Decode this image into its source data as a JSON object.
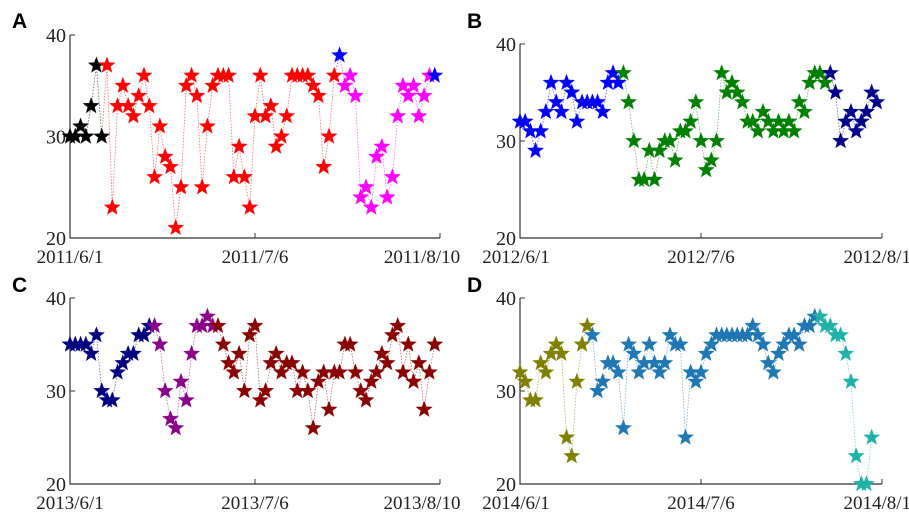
{
  "chart_data": [
    {
      "panel": "A",
      "type": "scatter",
      "xlabel": "",
      "ylabel": "",
      "ylim": [
        20,
        40
      ],
      "yticks": [
        "20",
        "30",
        "40"
      ],
      "x_tick_labels": [
        "2011/6/1",
        "2011/7/6",
        "2011/8/10"
      ],
      "x_domain": [
        0,
        70
      ],
      "grid": false,
      "series": [
        {
          "color": "#000000",
          "x": [
            0,
            1,
            2,
            3,
            4,
            5,
            6
          ],
          "y": [
            30,
            30,
            31,
            30,
            33,
            37,
            30
          ]
        },
        {
          "color": "#ff0000",
          "x": [
            7,
            8,
            9,
            10,
            11,
            12,
            13,
            14,
            15,
            16,
            17,
            18,
            19,
            20,
            21,
            22,
            23,
            24,
            25,
            26,
            27,
            28,
            29,
            30,
            31,
            32,
            33,
            34,
            35,
            36,
            37,
            38,
            39,
            40,
            41,
            42,
            43,
            44,
            45,
            46,
            47,
            48,
            49,
            50
          ],
          "y": [
            37,
            23,
            33,
            35,
            33,
            32,
            34,
            36,
            33,
            26,
            31,
            28,
            27,
            21,
            25,
            35,
            36,
            34,
            25,
            31,
            35,
            36,
            36,
            36,
            26,
            29,
            26,
            23,
            32,
            36,
            32,
            33,
            29,
            30,
            32,
            36,
            36,
            36,
            36,
            35,
            34,
            27,
            30,
            36
          ]
        },
        {
          "color": "#0000ff",
          "x": [
            51
          ],
          "y": [
            38
          ]
        },
        {
          "color": "#ff00ff",
          "x": [
            52,
            53,
            54,
            55,
            56,
            57,
            58,
            59,
            60,
            61,
            62,
            63,
            64,
            65,
            66,
            67,
            68
          ],
          "y": [
            35,
            36,
            34,
            24,
            25,
            23,
            28,
            29,
            24,
            26,
            32,
            35,
            34,
            35,
            32,
            34,
            36
          ]
        },
        {
          "color": "#0000ff",
          "x": [
            69
          ],
          "y": [
            36
          ]
        }
      ]
    },
    {
      "panel": "B",
      "type": "scatter",
      "xlabel": "",
      "ylabel": "",
      "ylim": [
        20,
        40
      ],
      "yticks": [
        "20",
        "30",
        "40"
      ],
      "x_tick_labels": [
        "2012/6/1",
        "2012/7/6",
        "2012/8/10"
      ],
      "x_domain": [
        0,
        70
      ],
      "grid": false,
      "series": [
        {
          "color": "#0000ff",
          "x": [
            0,
            1,
            2,
            3,
            4,
            5,
            6,
            7,
            8,
            9,
            10,
            11,
            12,
            13,
            14,
            15,
            16,
            17,
            18,
            19
          ],
          "y": [
            32,
            32,
            31,
            29,
            31,
            33,
            36,
            34,
            33,
            36,
            35,
            32,
            34,
            34,
            34,
            34,
            33,
            36,
            37,
            36
          ]
        },
        {
          "color": "#008000",
          "x": [
            20,
            21,
            22,
            23,
            24,
            25,
            26,
            27,
            28,
            29,
            30,
            31,
            32,
            33,
            34,
            35,
            36,
            37,
            38,
            39,
            40,
            41,
            42,
            43,
            44,
            45,
            46,
            47,
            48,
            49,
            50,
            51,
            52,
            53,
            54,
            55,
            56,
            57,
            58,
            59
          ],
          "y": [
            37,
            34,
            30,
            26,
            26,
            29,
            26,
            29,
            30,
            30,
            28,
            31,
            31,
            32,
            34,
            30,
            27,
            28,
            30,
            37,
            35,
            36,
            35,
            34,
            32,
            32,
            31,
            33,
            32,
            31,
            32,
            31,
            32,
            31,
            34,
            33,
            36,
            37,
            37,
            36
          ]
        },
        {
          "color": "#00008b",
          "x": [
            60,
            61,
            62,
            63,
            64,
            65,
            66,
            67,
            68,
            69
          ],
          "y": [
            37,
            35,
            30,
            32,
            33,
            31,
            32,
            33,
            35,
            34
          ]
        }
      ]
    },
    {
      "panel": "C",
      "type": "scatter",
      "xlabel": "",
      "ylabel": "",
      "ylim": [
        20,
        40
      ],
      "yticks": [
        "20",
        "30",
        "40"
      ],
      "x_tick_labels": [
        "2013/6/1",
        "2013/7/6",
        "2013/8/10"
      ],
      "x_domain": [
        0,
        70
      ],
      "grid": false,
      "series": [
        {
          "color": "#000080",
          "x": [
            0,
            1,
            2,
            3,
            4,
            5,
            6,
            7,
            8,
            9,
            10,
            11,
            12,
            13,
            14,
            15
          ],
          "y": [
            35,
            35,
            35,
            35,
            34,
            36,
            30,
            29,
            29,
            32,
            33,
            34,
            34,
            36,
            36,
            37
          ]
        },
        {
          "color": "#8b008b",
          "x": [
            16,
            17,
            18,
            19,
            20,
            21,
            22,
            23,
            24,
            25,
            26,
            27
          ],
          "y": [
            37,
            35,
            30,
            27,
            26,
            31,
            29,
            34,
            37,
            37,
            38,
            37
          ]
        },
        {
          "color": "#8b0000",
          "x": [
            28,
            29,
            30,
            31,
            32,
            33,
            34,
            35,
            36,
            37,
            38,
            39,
            40,
            41,
            42,
            43,
            44,
            45,
            46,
            47,
            48,
            49,
            50,
            51,
            52,
            53,
            54,
            55,
            56,
            57,
            58,
            59,
            60,
            61,
            62,
            63,
            64,
            65,
            66,
            67,
            68,
            69
          ],
          "y": [
            37,
            35,
            33,
            32,
            34,
            30,
            36,
            37,
            29,
            30,
            33,
            34,
            32,
            33,
            33,
            30,
            32,
            30,
            26,
            31,
            32,
            28,
            32,
            32,
            35,
            35,
            32,
            30,
            29,
            31,
            32,
            34,
            33,
            36,
            37,
            32,
            35,
            31,
            33,
            28,
            32,
            35
          ]
        }
      ]
    },
    {
      "panel": "D",
      "type": "scatter",
      "xlabel": "",
      "ylabel": "",
      "ylim": [
        20,
        40
      ],
      "yticks": [
        "20",
        "30",
        "40"
      ],
      "x_tick_labels": [
        "2014/6/1",
        "2014/7/6",
        "2014/8/10"
      ],
      "x_domain": [
        0,
        70
      ],
      "grid": false,
      "series": [
        {
          "color": "#808000",
          "x": [
            0,
            1,
            2,
            3,
            4,
            5,
            6,
            7,
            8,
            9,
            10,
            11,
            12,
            13
          ],
          "y": [
            32,
            31,
            29,
            29,
            33,
            32,
            34,
            35,
            34,
            25,
            23,
            31,
            35,
            37
          ]
        },
        {
          "color": "#1f77b4",
          "x": [
            14,
            15,
            16,
            17,
            18,
            19,
            20,
            21,
            22,
            23,
            24,
            25,
            26,
            27,
            28,
            29,
            30,
            31,
            32,
            33,
            34,
            35,
            36,
            37,
            38,
            39,
            40,
            41,
            42,
            43,
            44,
            45,
            46,
            47,
            48,
            49,
            50,
            51,
            52,
            53,
            54,
            55,
            56,
            57
          ],
          "y": [
            36,
            30,
            31,
            33,
            33,
            32,
            26,
            35,
            34,
            32,
            33,
            35,
            33,
            32,
            33,
            36,
            35,
            35,
            25,
            32,
            31,
            32,
            34,
            35,
            36,
            36,
            36,
            36,
            36,
            36,
            36,
            37,
            36,
            35,
            33,
            32,
            34,
            35,
            36,
            36,
            35,
            37,
            37,
            38
          ]
        },
        {
          "color": "#20b2aa",
          "x": [
            58,
            59,
            60,
            61,
            62,
            63,
            64,
            65,
            66,
            67
          ],
          "y": [
            38,
            37,
            37,
            36,
            36,
            34,
            31,
            23,
            20,
            20
          ]
        },
        {
          "color": "#20b2aa",
          "x": [
            68
          ],
          "y": [
            25
          ]
        }
      ]
    }
  ]
}
